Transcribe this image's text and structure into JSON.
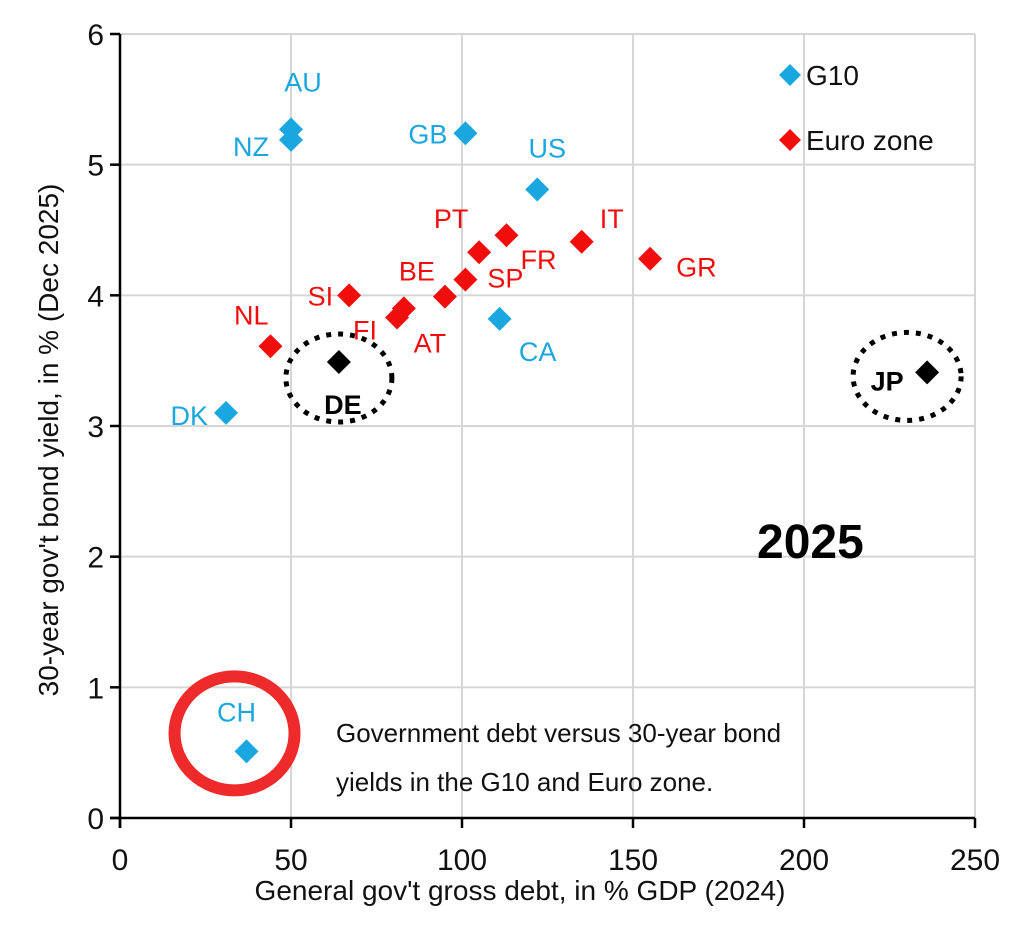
{
  "chart_data": {
    "type": "scatter",
    "title": "",
    "xlabel": "General gov't gross debt, in % GDP (2024)",
    "ylabel": "30-year gov't bond yield, in % (Dec 2025)",
    "xlim": [
      0,
      250
    ],
    "ylim": [
      0,
      6
    ],
    "xticks": [
      0,
      50,
      100,
      150,
      200,
      250
    ],
    "yticks": [
      0,
      1,
      2,
      3,
      4,
      5,
      6
    ],
    "xtick_labels": [
      "0",
      "50",
      "100",
      "150",
      "200",
      "250"
    ],
    "ytick_labels": [
      "0",
      "1",
      "2",
      "3",
      "4",
      "5",
      "6"
    ],
    "grid": true,
    "legend_position": "top-right",
    "series": [
      {
        "name": "G10",
        "color": "#1aa7e0",
        "marker": "diamond",
        "points": [
          {
            "label": "AU",
            "x": 50,
            "y": 5.27
          },
          {
            "label": "NZ",
            "x": 50,
            "y": 5.19
          },
          {
            "label": "GB",
            "x": 101,
            "y": 5.24
          },
          {
            "label": "US",
            "x": 122,
            "y": 4.81
          },
          {
            "label": "CA",
            "x": 111,
            "y": 3.82
          },
          {
            "label": "DK",
            "x": 31,
            "y": 3.1
          },
          {
            "label": "CH",
            "x": 37,
            "y": 0.51
          }
        ]
      },
      {
        "name": "Euro zone",
        "color": "#f20d0d",
        "marker": "diamond",
        "points": [
          {
            "label": "NL",
            "x": 44,
            "y": 3.61
          },
          {
            "label": "SI",
            "x": 67,
            "y": 4.0
          },
          {
            "label": "FI",
            "x": 81,
            "y": 3.83
          },
          {
            "label": "AT",
            "x": 83,
            "y": 3.9
          },
          {
            "label": "BE",
            "x": 95,
            "y": 3.99
          },
          {
            "label": "SP",
            "x": 101,
            "y": 4.12
          },
          {
            "label": "PT",
            "x": 105,
            "y": 4.33
          },
          {
            "label": "FR",
            "x": 113,
            "y": 4.46
          },
          {
            "label": "IT",
            "x": 135,
            "y": 4.41
          },
          {
            "label": "GR",
            "x": 155,
            "y": 4.28
          }
        ]
      },
      {
        "name": "Highlighted",
        "color": "#000000",
        "marker": "diamond",
        "in_legend": false,
        "points": [
          {
            "label": "DE",
            "x": 64,
            "y": 3.49
          },
          {
            "label": "JP",
            "x": 236,
            "y": 3.41
          }
        ]
      }
    ],
    "annotations": [
      {
        "text": "2025",
        "style": "bold-large"
      },
      {
        "text": "Government debt versus 30-year bond",
        "style": "caption-line-1"
      },
      {
        "text": "yields in the G10 and Euro zone.",
        "style": "caption-line-2"
      },
      {
        "type": "dotted-circle",
        "target": "DE",
        "color": "#000000"
      },
      {
        "type": "dotted-circle",
        "target": "JP",
        "color": "#000000"
      },
      {
        "type": "ring",
        "target": "CH",
        "color": "#ee2a2a"
      }
    ]
  }
}
